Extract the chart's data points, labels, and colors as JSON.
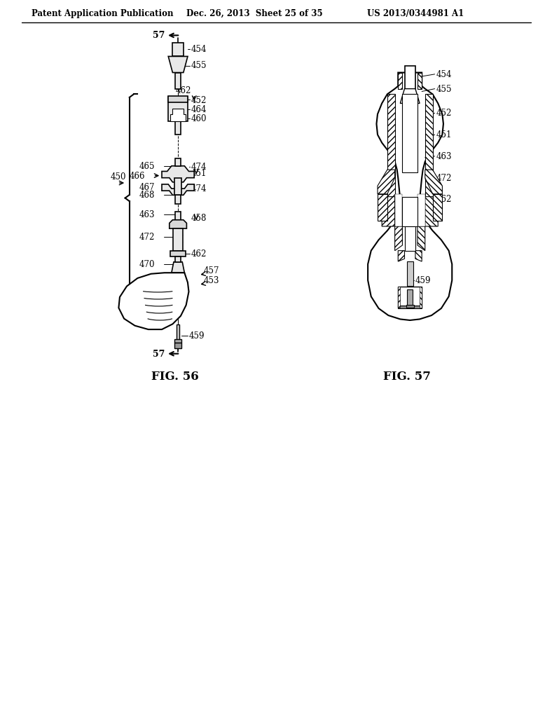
{
  "header_left": "Patent Application Publication",
  "header_mid": "Dec. 26, 2013  Sheet 25 of 35",
  "header_right": "US 2013/0344981 A1",
  "fig56_label": "FIG. 56",
  "fig57_label": "FIG. 57",
  "bg_color": "#ffffff"
}
